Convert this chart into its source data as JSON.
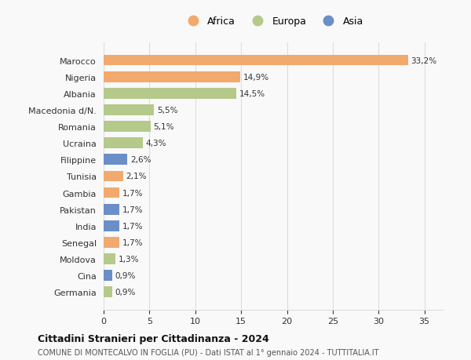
{
  "categories": [
    "Germania",
    "Cina",
    "Moldova",
    "Senegal",
    "India",
    "Pakistan",
    "Gambia",
    "Tunisia",
    "Filippine",
    "Ucraina",
    "Romania",
    "Macedonia d/N.",
    "Albania",
    "Nigeria",
    "Marocco"
  ],
  "values": [
    0.9,
    0.9,
    1.3,
    1.7,
    1.7,
    1.7,
    1.7,
    2.1,
    2.6,
    4.3,
    5.1,
    5.5,
    14.5,
    14.9,
    33.2
  ],
  "labels": [
    "0,9%",
    "0,9%",
    "1,3%",
    "1,7%",
    "1,7%",
    "1,7%",
    "1,7%",
    "2,1%",
    "2,6%",
    "4,3%",
    "5,1%",
    "5,5%",
    "14,5%",
    "14,9%",
    "33,2%"
  ],
  "continents": [
    "Europa",
    "Asia",
    "Europa",
    "Africa",
    "Asia",
    "Asia",
    "Africa",
    "Africa",
    "Asia",
    "Europa",
    "Europa",
    "Europa",
    "Europa",
    "Africa",
    "Africa"
  ],
  "colors": {
    "Africa": "#F2A96E",
    "Europa": "#B5C98A",
    "Asia": "#6A8FC8"
  },
  "title1": "Cittadini Stranieri per Cittadinanza - 2024",
  "title2": "COMUNE DI MONTECALVO IN FOGLIA (PU) - Dati ISTAT al 1° gennaio 2024 - TUTTITALIA.IT",
  "xlim": [
    0,
    37
  ],
  "xticks": [
    0,
    5,
    10,
    15,
    20,
    25,
    30,
    35
  ],
  "background_color": "#f9f9f9",
  "grid_color": "#dddddd",
  "bar_height": 0.65,
  "legend_labels": [
    "Africa",
    "Europa",
    "Asia"
  ],
  "legend_colors": [
    "#F2A96E",
    "#B5C98A",
    "#6A8FC8"
  ]
}
